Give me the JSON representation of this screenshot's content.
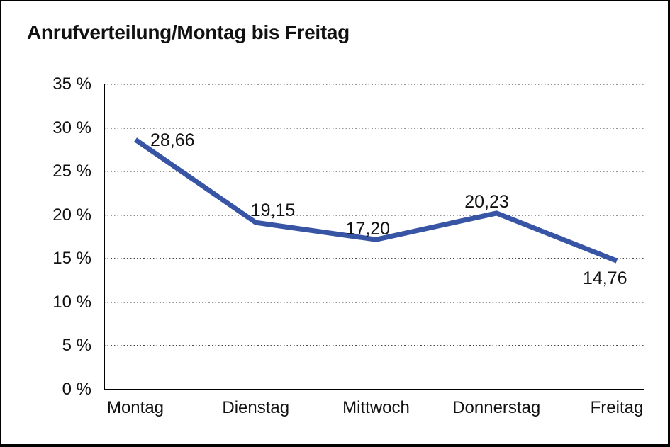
{
  "title": "Anrufverteilung/Montag bis Freitag",
  "chart_data": {
    "type": "line",
    "title": "Anrufverteilung/Montag bis Freitag",
    "categories": [
      "Montag",
      "Dienstag",
      "Mittwoch",
      "Donnerstag",
      "Freitag"
    ],
    "values": [
      28.66,
      19.15,
      17.2,
      20.23,
      14.76
    ],
    "value_labels": [
      "28,66",
      "19,15",
      "17,20",
      "20,23",
      "14,76"
    ],
    "series_name": "Anrufverteilung",
    "xlabel": "",
    "ylabel": "",
    "ylim": [
      0,
      35
    ],
    "y_tick_step": 5,
    "y_tick_labels": [
      "0 %",
      "5 %",
      "10 %",
      "15 %",
      "20 %",
      "25 %",
      "30 %",
      "35 %"
    ],
    "grid": "dotted-horizontal",
    "legend": "none",
    "line_color": "#3854A4",
    "axis_color": "#000000",
    "label_color": "#111111"
  }
}
